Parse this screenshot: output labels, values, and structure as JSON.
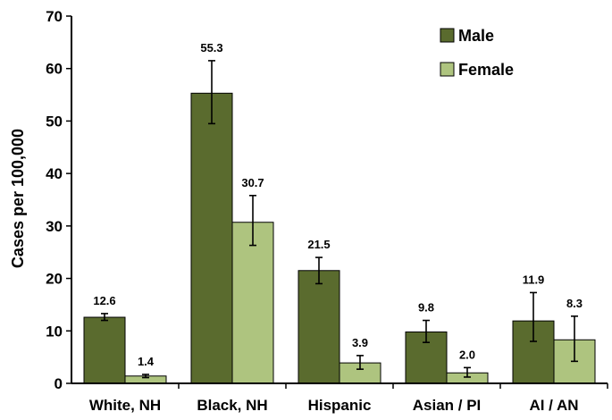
{
  "chart_data": {
    "type": "bar",
    "title": "",
    "xlabel": "",
    "ylabel": "Cases per 100,000",
    "ylim": [
      0,
      70
    ],
    "yticks": [
      0,
      10,
      20,
      30,
      40,
      50,
      60,
      70
    ],
    "grid": false,
    "legend_position": "top-right",
    "categories": [
      "White, NH",
      "Black, NH",
      "Hispanic",
      "Asian / PI",
      "AI / AN"
    ],
    "series": [
      {
        "name": "Male",
        "color": "#5a6b2e",
        "values": [
          12.6,
          55.3,
          21.5,
          9.8,
          11.9
        ],
        "labels": [
          "12.6",
          "55.3",
          "21.5",
          "9.8",
          "11.9"
        ],
        "error_low": [
          12.0,
          49.5,
          19.0,
          7.8,
          8.0
        ],
        "error_high": [
          13.3,
          61.5,
          24.0,
          12.0,
          17.3
        ]
      },
      {
        "name": "Female",
        "color": "#aec47f",
        "values": [
          1.4,
          30.7,
          3.9,
          2.0,
          8.3
        ],
        "labels": [
          "1.4",
          "30.7",
          "3.9",
          "2.0",
          "8.3"
        ],
        "error_low": [
          1.1,
          26.3,
          2.7,
          1.2,
          4.2
        ],
        "error_high": [
          1.7,
          35.8,
          5.3,
          3.0,
          12.8
        ]
      }
    ]
  }
}
